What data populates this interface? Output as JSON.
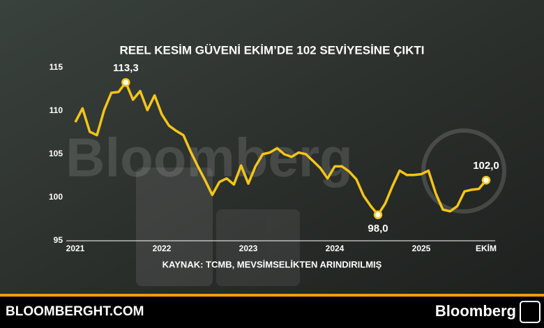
{
  "chart_data": {
    "type": "line",
    "title": "REEL KESİM GÜVENİ EKİM’DE 102 SEVİYESİNE ÇIKTI",
    "source": "KAYNAK: TCMB, MEVSİMSELİKTEN ARINDIRILMIŞ",
    "watermark": "Bloomberg",
    "footer_site": "BLOOMBERGHT.COM",
    "footer_brand": "Bloomberg",
    "categories": [
      "2021",
      null,
      null,
      null,
      null,
      null,
      null,
      null,
      null,
      null,
      null,
      null,
      "2022",
      null,
      null,
      null,
      null,
      null,
      null,
      null,
      null,
      null,
      null,
      null,
      "2023",
      null,
      null,
      null,
      null,
      null,
      null,
      null,
      null,
      null,
      null,
      null,
      "2024",
      null,
      null,
      null,
      null,
      null,
      null,
      null,
      null,
      null,
      null,
      null,
      "2025",
      null,
      null,
      null,
      null,
      null,
      null,
      null,
      null,
      "EKİM"
    ],
    "values": [
      108.7,
      110.3,
      107.6,
      107.2,
      110.1,
      112.1,
      112.2,
      113.3,
      111.3,
      112.3,
      110.1,
      111.8,
      109.6,
      108.3,
      107.7,
      107.2,
      105.3,
      103.6,
      102.0,
      100.3,
      101.8,
      102.2,
      101.5,
      103.7,
      101.6,
      103.6,
      105.0,
      105.2,
      105.7,
      105.0,
      104.7,
      105.2,
      105.0,
      104.2,
      103.4,
      102.2,
      103.6,
      103.6,
      103.0,
      102.1,
      100.2,
      99.0,
      98.0,
      99.3,
      101.3,
      103.1,
      102.6,
      102.6,
      102.7,
      103.1,
      100.5,
      98.6,
      98.4,
      99.0,
      100.7,
      100.9,
      101.0,
      102.0
    ],
    "value_labels": [
      null,
      null,
      null,
      null,
      null,
      null,
      null,
      "113,3",
      null,
      null,
      null,
      null,
      null,
      null,
      null,
      null,
      null,
      null,
      null,
      null,
      null,
      null,
      null,
      null,
      null,
      null,
      null,
      null,
      null,
      null,
      null,
      null,
      null,
      null,
      null,
      null,
      null,
      null,
      null,
      null,
      null,
      null,
      "98,0",
      null,
      null,
      null,
      null,
      null,
      null,
      null,
      null,
      null,
      null,
      null,
      null,
      null,
      null,
      "102,0"
    ],
    "color": "#f5c518",
    "ylim": [
      95,
      115
    ],
    "yticks": [
      95,
      100,
      105,
      110,
      115
    ]
  }
}
